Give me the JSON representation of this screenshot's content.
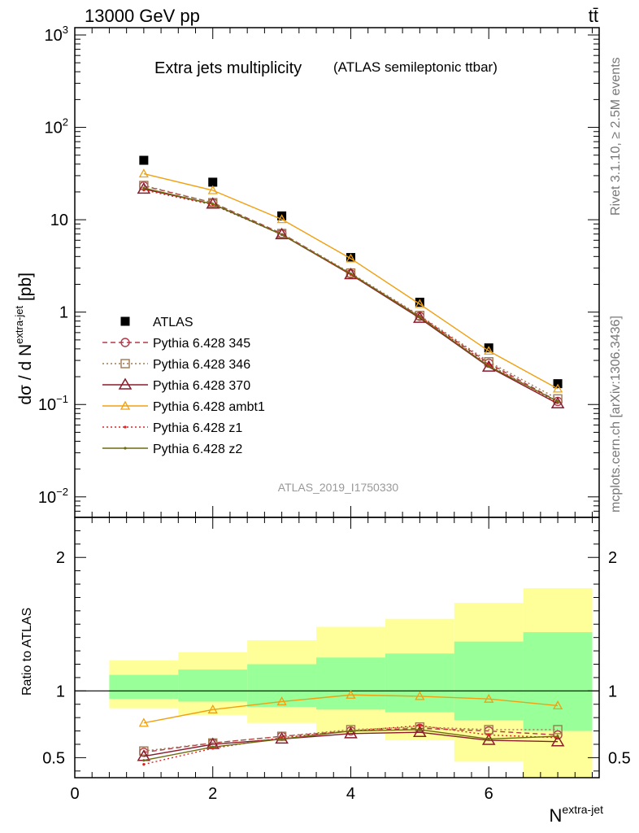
{
  "header": {
    "energy_label": "13000 GeV pp",
    "process_label": "tt̄",
    "side_label_top": "Rivet 3.1.10, ≥ 2.5M events",
    "side_label_bottom": "mcplots.cern.ch [arXiv:1306.3436]"
  },
  "chart_data": [
    {
      "type": "line",
      "title": "Extra jets multiplicity",
      "subtitle": "(ATLAS semileptonic ttbar)",
      "ylabel": "dσ / d N^{extra-jet} [pb]",
      "ylabel_parts": {
        "pre": "dσ / d N",
        "sup": "extra-jet",
        "post": " [pb]"
      },
      "yscale": "log",
      "ylim": [
        0.006,
        1200
      ],
      "xlim": [
        0,
        7.6
      ],
      "yticks_major": [
        {
          "value": 0.01,
          "base": "10",
          "exp": "−2"
        },
        {
          "value": 0.1,
          "base": "10",
          "exp": "−1"
        },
        {
          "value": 1,
          "base": "1",
          "exp": ""
        },
        {
          "value": 10,
          "base": "10",
          "exp": ""
        },
        {
          "value": 100,
          "base": "10",
          "exp": "2"
        },
        {
          "value": 1000,
          "base": "10",
          "exp": "3"
        }
      ],
      "watermark": "ATLAS_2019_I1750330",
      "legend_position": "center-left",
      "x": [
        1,
        2,
        3,
        4,
        5,
        6,
        7
      ],
      "series": [
        {
          "name": "ATLAS",
          "color": "#000000",
          "marker": "filled-square",
          "line": "none",
          "values": [
            44,
            25.5,
            11,
            3.9,
            1.28,
            0.41,
            0.168
          ]
        },
        {
          "name": "Pythia 6.428 345",
          "color": "#b03a48",
          "marker": "open-circle",
          "line": "dashed",
          "values": [
            23.2,
            15.3,
            7.1,
            2.6,
            0.9,
            0.28,
            0.108
          ]
        },
        {
          "name": "Pythia 6.428 346",
          "color": "#a07850",
          "marker": "open-square",
          "line": "dotted",
          "values": [
            23.5,
            15.3,
            7.1,
            2.65,
            0.92,
            0.29,
            0.115
          ]
        },
        {
          "name": "Pythia 6.428 370",
          "color": "#8b1a2b",
          "marker": "open-triangle",
          "line": "solid",
          "values": [
            21.5,
            14.8,
            6.9,
            2.55,
            0.86,
            0.255,
            0.102
          ]
        },
        {
          "name": "Pythia 6.428 ambt1",
          "color": "#f0a010",
          "marker": "open-triangle-small",
          "line": "solid",
          "values": [
            31.5,
            20.8,
            10.1,
            3.8,
            1.22,
            0.38,
            0.148
          ]
        },
        {
          "name": "Pythia 6.428 z1",
          "color": "#e02020",
          "marker": "dot",
          "line": "dotted",
          "values": [
            21,
            14.5,
            6.9,
            2.55,
            0.9,
            0.27,
            0.105
          ]
        },
        {
          "name": "Pythia 6.428 z2",
          "color": "#6b6b10",
          "marker": "dot",
          "line": "solid",
          "values": [
            22,
            14.8,
            6.9,
            2.6,
            0.88,
            0.26,
            0.108
          ]
        }
      ]
    },
    {
      "type": "line",
      "ylabel": "Ratio to ATLAS",
      "xlabel": "N^{extra-jet}",
      "xlabel_parts": {
        "pre": "N",
        "sup": "extra-jet"
      },
      "ylim": [
        0.35,
        2.3
      ],
      "xlim": [
        0,
        7.6
      ],
      "yticks_labeled": [
        0.5,
        1,
        2
      ],
      "xticks_labeled": [
        0,
        2,
        4,
        6
      ],
      "x": [
        1,
        2,
        3,
        4,
        5,
        6,
        7
      ],
      "bands": {
        "bin_edges": [
          0.5,
          1.5,
          2.5,
          3.5,
          4.5,
          5.5,
          6.5,
          7.5
        ],
        "green_color": "#99ff99",
        "yellow_color": "#ffff99",
        "green": [
          [
            0.94,
            1.12
          ],
          [
            0.92,
            1.16
          ],
          [
            0.88,
            1.2
          ],
          [
            0.86,
            1.25
          ],
          [
            0.84,
            1.28
          ],
          [
            0.78,
            1.37
          ],
          [
            0.7,
            1.44
          ]
        ],
        "yellow": [
          [
            0.87,
            1.23
          ],
          [
            0.82,
            1.29
          ],
          [
            0.76,
            1.38
          ],
          [
            0.68,
            1.48
          ],
          [
            0.63,
            1.54
          ],
          [
            0.47,
            1.66
          ],
          [
            0.3,
            1.77
          ]
        ]
      },
      "series": [
        {
          "name": "Pythia 6.428 345",
          "values": [
            0.54,
            0.61,
            0.66,
            0.7,
            0.72,
            0.7,
            0.67
          ]
        },
        {
          "name": "Pythia 6.428 346",
          "values": [
            0.55,
            0.61,
            0.66,
            0.71,
            0.73,
            0.71,
            0.71
          ]
        },
        {
          "name": "Pythia 6.428 370",
          "values": [
            0.51,
            0.6,
            0.64,
            0.68,
            0.69,
            0.63,
            0.62
          ]
        },
        {
          "name": "Pythia 6.428 ambt1",
          "values": [
            0.76,
            0.86,
            0.92,
            0.97,
            0.96,
            0.94,
            0.89
          ]
        },
        {
          "name": "Pythia 6.428 z1",
          "values": [
            0.45,
            0.57,
            0.65,
            0.7,
            0.74,
            0.67,
            0.65
          ]
        },
        {
          "name": "Pythia 6.428 z2",
          "values": [
            0.48,
            0.58,
            0.64,
            0.7,
            0.71,
            0.64,
            0.66
          ]
        }
      ]
    }
  ]
}
